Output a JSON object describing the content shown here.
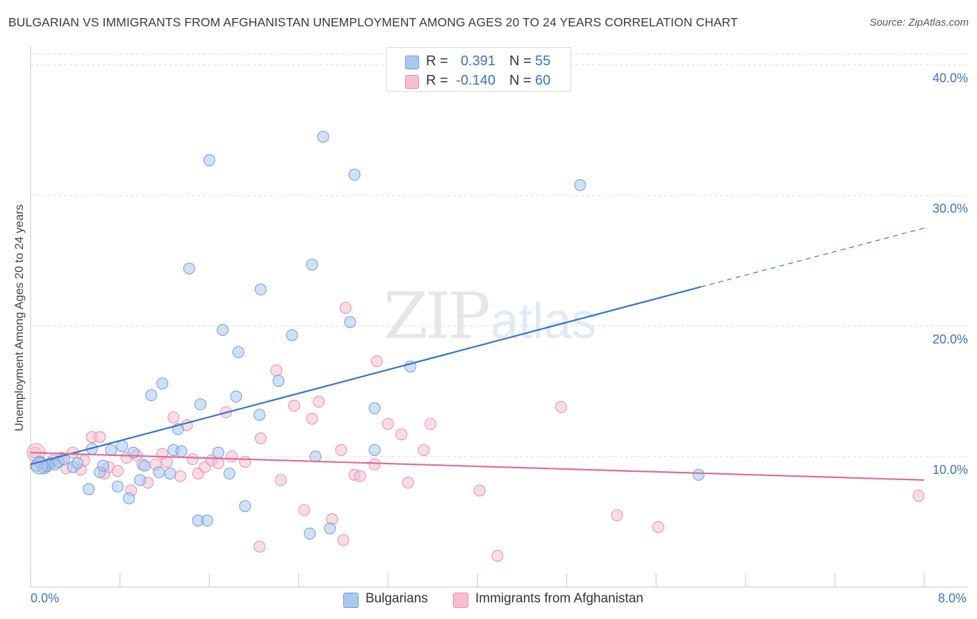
{
  "title": "BULGARIAN VS IMMIGRANTS FROM AFGHANISTAN UNEMPLOYMENT AMONG AGES 20 TO 24 YEARS CORRELATION CHART",
  "source": "Source: ZipAtlas.com",
  "watermark": {
    "zip": "ZIP",
    "atlas": "atlas"
  },
  "legend": {
    "series1": {
      "r_label": "R =",
      "r_value": "0.391",
      "n_label": "N =",
      "n_value": "55"
    },
    "series2": {
      "r_label": "R =",
      "r_value": "-0.140",
      "n_label": "N =",
      "n_value": "60"
    }
  },
  "bottom_legend": [
    "Bulgarians",
    "Immigrants from Afghanistan"
  ],
  "colors": {
    "blue_fill": "#aac8f0",
    "blue_stroke": "#6a9bd8",
    "blue_line": "#2f74d0",
    "pink_fill": "#f6bfd0",
    "pink_stroke": "#e88aa8",
    "pink_line": "#e2689a",
    "axis_text": "#3a72c4",
    "grid": "#dcdcdc"
  },
  "chart_data": {
    "type": "scatter",
    "title": "BULGARIAN VS IMMIGRANTS FROM AFGHANISTAN UNEMPLOYMENT AMONG AGES 20 TO 24 YEARS CORRELATION CHART",
    "xlabel": "",
    "ylabel": "Unemployment Among Ages 20 to 24 years",
    "xlim": [
      0,
      8
    ],
    "ylim": [
      0,
      42
    ],
    "x_tick_labels": [
      "0.0%",
      "8.0%"
    ],
    "y_ticks": [
      10,
      20,
      30,
      40
    ],
    "y_tick_labels": [
      "10.0%",
      "20.0%",
      "30.0%",
      "40.0%"
    ],
    "series": [
      {
        "name": "Bulgarians",
        "R": 0.391,
        "N": 55,
        "trend": {
          "x0": 0,
          "y0": 9.4,
          "x1": 6.0,
          "y1": 23.0,
          "dash_to_x": 8.0,
          "dash_to_y": 27.5
        },
        "points": [
          [
            0.05,
            9.3
          ],
          [
            0.08,
            9.6
          ],
          [
            0.12,
            9.1
          ],
          [
            0.15,
            9.3
          ],
          [
            0.18,
            9.5
          ],
          [
            0.22,
            9.4
          ],
          [
            0.25,
            9.6
          ],
          [
            0.3,
            9.8
          ],
          [
            0.38,
            9.2
          ],
          [
            0.42,
            9.5
          ],
          [
            0.52,
            7.5
          ],
          [
            0.55,
            10.6
          ],
          [
            0.62,
            8.8
          ],
          [
            0.65,
            9.3
          ],
          [
            0.72,
            10.5
          ],
          [
            0.78,
            7.7
          ],
          [
            0.82,
            10.8
          ],
          [
            0.88,
            6.8
          ],
          [
            0.92,
            10.3
          ],
          [
            0.98,
            8.2
          ],
          [
            1.02,
            9.3
          ],
          [
            1.08,
            14.7
          ],
          [
            1.15,
            8.8
          ],
          [
            1.18,
            15.6
          ],
          [
            1.25,
            8.7
          ],
          [
            1.28,
            10.5
          ],
          [
            1.32,
            12.1
          ],
          [
            1.35,
            10.4
          ],
          [
            1.42,
            24.4
          ],
          [
            1.5,
            5.1
          ],
          [
            1.52,
            14.0
          ],
          [
            1.58,
            5.1
          ],
          [
            1.6,
            32.7
          ],
          [
            1.68,
            10.3
          ],
          [
            1.72,
            19.7
          ],
          [
            1.78,
            8.7
          ],
          [
            1.84,
            14.6
          ],
          [
            1.86,
            18.0
          ],
          [
            1.92,
            6.2
          ],
          [
            2.05,
            13.2
          ],
          [
            2.06,
            22.8
          ],
          [
            2.22,
            15.8
          ],
          [
            2.34,
            19.3
          ],
          [
            2.52,
            24.7
          ],
          [
            2.5,
            4.1
          ],
          [
            2.55,
            10.0
          ],
          [
            2.62,
            34.5
          ],
          [
            2.68,
            4.5
          ],
          [
            2.86,
            20.3
          ],
          [
            2.9,
            31.6
          ],
          [
            3.08,
            13.7
          ],
          [
            3.08,
            10.5
          ],
          [
            3.4,
            16.9
          ],
          [
            4.92,
            30.8
          ],
          [
            5.98,
            8.6
          ]
        ]
      },
      {
        "name": "Immigrants from Afghanistan",
        "R": -0.14,
        "N": 60,
        "trend": {
          "x0": 0,
          "y0": 10.3,
          "x1": 8.0,
          "y1": 8.2
        },
        "points": [
          [
            0.04,
            10.3
          ],
          [
            0.1,
            9.5
          ],
          [
            0.14,
            9.2
          ],
          [
            0.2,
            9.7
          ],
          [
            0.28,
            9.9
          ],
          [
            0.32,
            9.1
          ],
          [
            0.38,
            10.3
          ],
          [
            0.45,
            9.0
          ],
          [
            0.48,
            9.7
          ],
          [
            0.55,
            11.5
          ],
          [
            0.62,
            11.5
          ],
          [
            0.66,
            8.7
          ],
          [
            0.7,
            9.2
          ],
          [
            0.78,
            8.9
          ],
          [
            0.86,
            9.9
          ],
          [
            0.9,
            7.4
          ],
          [
            0.95,
            10.1
          ],
          [
            1.0,
            9.4
          ],
          [
            1.05,
            8.0
          ],
          [
            1.12,
            9.4
          ],
          [
            1.18,
            10.2
          ],
          [
            1.22,
            9.6
          ],
          [
            1.28,
            13.0
          ],
          [
            1.34,
            8.5
          ],
          [
            1.4,
            12.4
          ],
          [
            1.45,
            9.8
          ],
          [
            1.5,
            8.7
          ],
          [
            1.56,
            9.2
          ],
          [
            1.62,
            9.7
          ],
          [
            1.68,
            9.5
          ],
          [
            1.75,
            13.4
          ],
          [
            1.8,
            10.0
          ],
          [
            1.92,
            9.6
          ],
          [
            2.06,
            11.4
          ],
          [
            2.2,
            16.6
          ],
          [
            2.24,
            8.2
          ],
          [
            2.36,
            13.9
          ],
          [
            2.45,
            5.9
          ],
          [
            2.52,
            12.9
          ],
          [
            2.58,
            14.2
          ],
          [
            2.7,
            5.2
          ],
          [
            2.78,
            10.5
          ],
          [
            2.82,
            21.4
          ],
          [
            2.8,
            3.6
          ],
          [
            2.9,
            8.6
          ],
          [
            2.95,
            8.5
          ],
          [
            3.08,
            9.4
          ],
          [
            3.1,
            17.3
          ],
          [
            3.2,
            12.5
          ],
          [
            3.32,
            11.7
          ],
          [
            3.38,
            8.0
          ],
          [
            3.52,
            10.5
          ],
          [
            3.58,
            12.5
          ],
          [
            4.02,
            7.4
          ],
          [
            4.18,
            2.4
          ],
          [
            4.75,
            13.8
          ],
          [
            5.25,
            5.5
          ],
          [
            5.62,
            4.6
          ],
          [
            7.95,
            7.0
          ],
          [
            2.05,
            3.1
          ]
        ]
      }
    ]
  }
}
